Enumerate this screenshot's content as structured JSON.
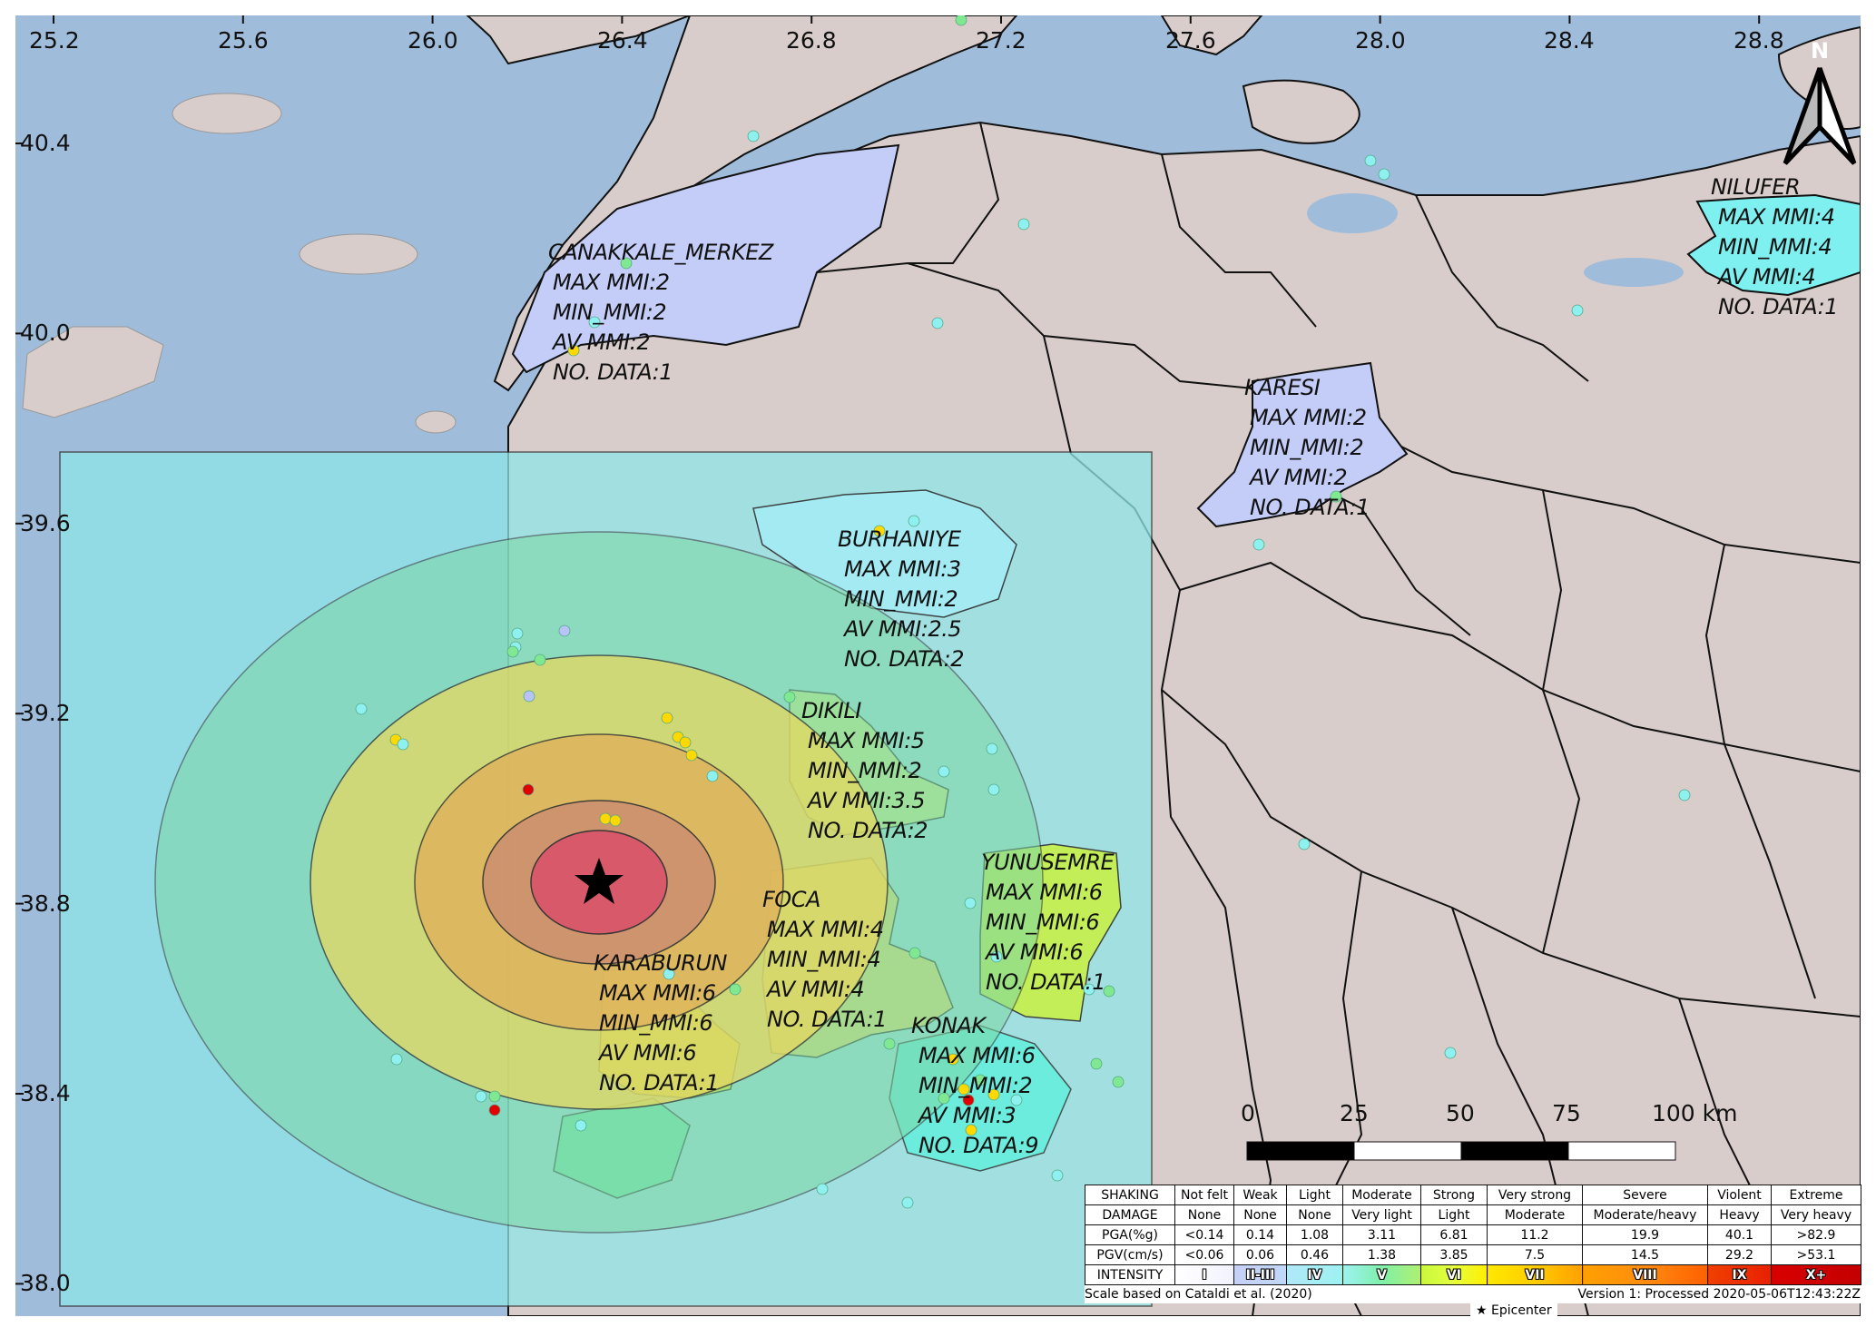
{
  "map": {
    "longitude_ticks": [
      "25.2",
      "25.6",
      "26.0",
      "26.4",
      "26.8",
      "27.2",
      "27.6",
      "28.0",
      "28.4",
      "28.8"
    ],
    "latitude_ticks": [
      "40.4",
      "40.0",
      "39.6",
      "39.2",
      "38.8",
      "38.4",
      "38.0"
    ],
    "north_arrow_label": "N",
    "epicenter_icon": "star-icon",
    "colors": {
      "sea": "#9fbcda",
      "land": "#d8cdca",
      "overlay": "#8fe6e8",
      "intensity_I": "#f2f2ff",
      "intensity_II_III": "#c6d0f6",
      "intensity_IV": "#9df2f2",
      "intensity_V": "#7ff0a8",
      "intensity_VI": "#e6ff3c",
      "intensity_VII": "#ffcc00",
      "intensity_VIII": "#ff8c10",
      "intensity_IX": "#e82000",
      "intensity_X": "#c40000"
    }
  },
  "districts": [
    {
      "name": "CANAKKALE_MERKEZ",
      "lines": [
        "MAX MMI:2",
        "MIN_MMI:2",
        "AV MMI:2",
        "NO. DATA:1"
      ]
    },
    {
      "name": "NILUFER",
      "lines": [
        "MAX MMI:4",
        "MIN_MMI:4",
        "AV MMI:4",
        "NO. DATA:1"
      ]
    },
    {
      "name": "KARESI",
      "lines": [
        "MAX MMI:2",
        "MIN_MMI:2",
        "AV MMI:2",
        "NO. DATA:1"
      ]
    },
    {
      "name": "BURHANIYE",
      "lines": [
        "MAX MMI:3",
        "MIN_MMI:2",
        "AV MMI:2.5",
        "NO. DATA:2"
      ]
    },
    {
      "name": "DIKILI",
      "lines": [
        "MAX MMI:5",
        "MIN_MMI:2",
        "AV MMI:3.5",
        "NO. DATA:2"
      ]
    },
    {
      "name": "YUNUSEMRE",
      "lines": [
        "MAX MMI:6",
        "MIN_MMI:6",
        "AV MMI:6",
        "NO. DATA:1"
      ]
    },
    {
      "name": "FOCA",
      "lines": [
        "MAX MMI:4",
        "MIN_MMI:4",
        "AV MMI:4",
        "NO. DATA:1"
      ]
    },
    {
      "name": "KARABURUN",
      "lines": [
        "MAX MMI:6",
        "MIN_MMI:6",
        "AV MMI:6",
        "NO. DATA:1"
      ]
    },
    {
      "name": "KONAK",
      "lines": [
        "MAX MMI:6",
        "MIN_MMI:2",
        "AV MMI:3",
        "NO. DATA:9"
      ]
    }
  ],
  "scale_bar": {
    "labels": [
      "0",
      "25",
      "50",
      "75",
      "100 km"
    ]
  },
  "legend": {
    "rows": [
      [
        "SHAKING",
        "Not felt",
        "Weak",
        "Light",
        "Moderate",
        "Strong",
        "Very strong",
        "Severe",
        "Violent",
        "Extreme"
      ],
      [
        "DAMAGE",
        "None",
        "None",
        "None",
        "Very light",
        "Light",
        "Moderate",
        "Moderate/heavy",
        "Heavy",
        "Very heavy"
      ],
      [
        "PGA(%g)",
        "<0.14",
        "0.14",
        "1.08",
        "3.11",
        "6.81",
        "11.2",
        "19.9",
        "40.1",
        ">82.9"
      ],
      [
        "PGV(cm/s)",
        "<0.06",
        "0.06",
        "0.46",
        "1.38",
        "3.85",
        "7.5",
        "14.5",
        "29.2",
        ">53.1"
      ],
      [
        "INTENSITY",
        "I",
        "II-III",
        "IV",
        "V",
        "VI",
        "VII",
        "VIII",
        "IX",
        "X+"
      ]
    ],
    "scale_note": "Scale based on Cataldi et al. (2020)",
    "version": "Version 1: Processed 2020-05-06T12:43:22Z",
    "epicenter_label": "Epicenter"
  }
}
